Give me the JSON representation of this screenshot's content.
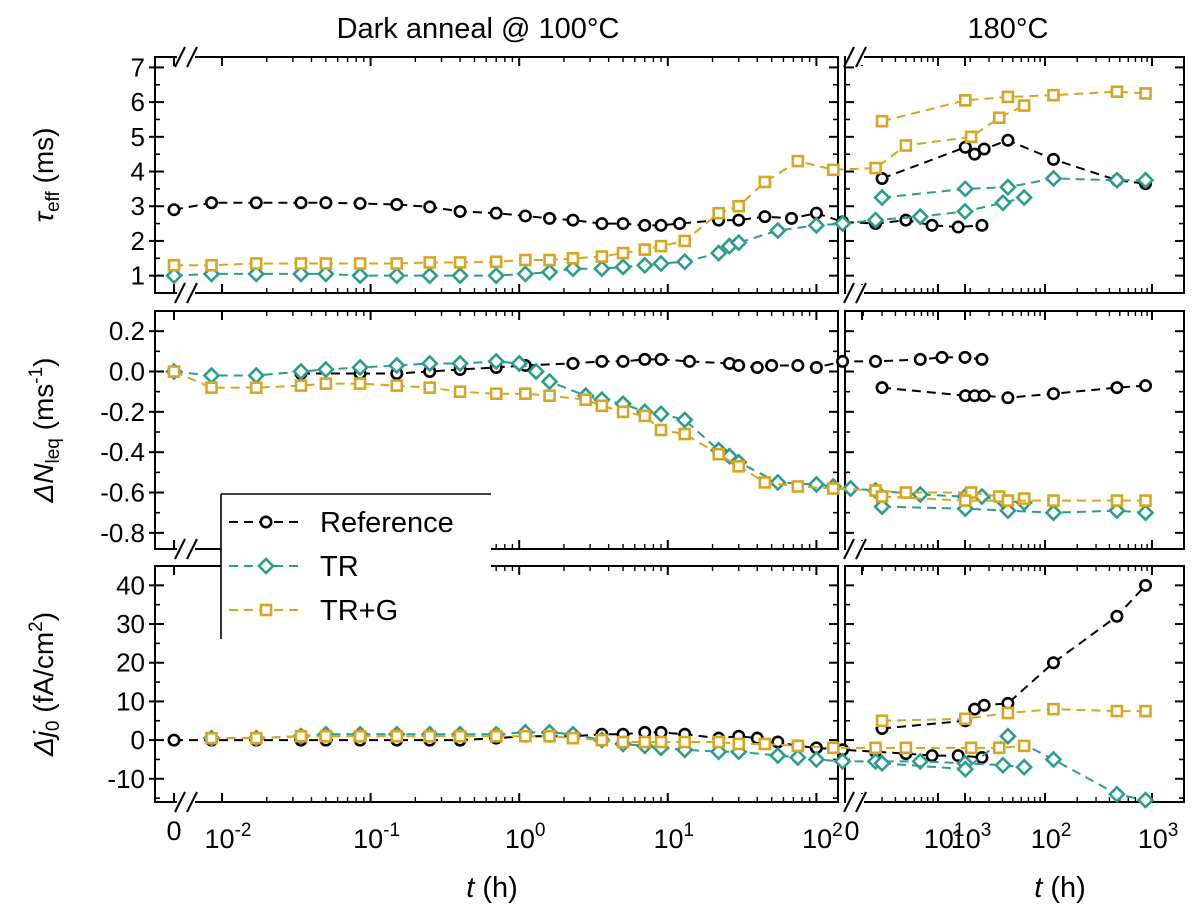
{
  "figure": {
    "left_title": "Dark anneal @ 100°C",
    "right_title": "180°C",
    "xlabel_var": "t",
    "xlabel_unit": " (h)",
    "legend": [
      {
        "label": "Reference",
        "series": "Reference"
      },
      {
        "label": "TR",
        "series": "TR"
      },
      {
        "label": "TR+G",
        "series": "TR+G"
      }
    ]
  },
  "colors": {
    "Reference": "#000000",
    "TR": "#2a9d8f",
    "TR+G": "#d9a521",
    "axis": "#000000",
    "background": "#ffffff"
  },
  "x_axis_left": {
    "scale": "log with zero break",
    "zero_label": "0",
    "ticks": [
      {
        "value": 0.01,
        "base": "10",
        "exp": "-2"
      },
      {
        "value": 0.1,
        "base": "10",
        "exp": "-1"
      },
      {
        "value": 1,
        "base": "10",
        "exp": "0"
      },
      {
        "value": 10,
        "base": "10",
        "exp": "1"
      },
      {
        "value": 100,
        "base": "10",
        "exp": "2"
      },
      {
        "value": 1000,
        "base": "10",
        "exp": "3"
      }
    ]
  },
  "x_axis_right": {
    "scale": "log with zero break",
    "zero_label": "0",
    "ticks": [
      {
        "value": 10,
        "base": "10",
        "exp": "1"
      },
      {
        "value": 100,
        "base": "10",
        "exp": "2"
      },
      {
        "value": 1000,
        "base": "10",
        "exp": "3"
      }
    ]
  },
  "chart_data": [
    {
      "type": "line",
      "panel": "tau_eff",
      "ylabel": {
        "sym": "τ",
        "sub": "eff",
        "unit": " (ms)"
      },
      "ylim": [
        0.5,
        7.3
      ],
      "yticks": [
        1,
        2,
        3,
        4,
        5,
        6,
        7
      ],
      "ytick_labels": [
        "1",
        "2",
        "3",
        "4",
        "5",
        "6",
        "7"
      ],
      "xlabel": "t (h)",
      "series": [
        {
          "name": "Reference",
          "left": {
            "x": [
              0,
              0.0085,
              0.017,
              0.034,
              0.05,
              0.085,
              0.15,
              0.25,
              0.4,
              0.7,
              1.1,
              1.6,
              2.3,
              3.6,
              5,
              7,
              9,
              12,
              22,
              30,
              45,
              68,
              100,
              150,
              250,
              400,
              600,
              900,
              1300
            ],
            "y": [
              2.9,
              3.1,
              3.1,
              3.1,
              3.1,
              3.08,
              3.05,
              2.98,
              2.85,
              2.8,
              2.72,
              2.65,
              2.6,
              2.5,
              2.5,
              2.45,
              2.45,
              2.5,
              2.6,
              2.6,
              2.7,
              2.65,
              2.8,
              2.55,
              2.5,
              2.6,
              2.45,
              2.4,
              2.45
            ]
          },
          "right": {
            "x": [
              3,
              18,
              22,
              27,
              45,
              120,
              470,
              870
            ],
            "y": [
              3.8,
              4.7,
              4.5,
              4.65,
              4.9,
              4.35,
              3.75,
              3.65
            ]
          }
        },
        {
          "name": "TR",
          "left": {
            "x": [
              0,
              0.0085,
              0.017,
              0.034,
              0.05,
              0.085,
              0.15,
              0.25,
              0.4,
              0.7,
              1.1,
              1.6,
              2.3,
              3.6,
              5,
              7,
              9,
              13,
              22,
              26,
              30,
              55,
              100,
              150,
              250,
              500,
              1000,
              1800,
              2500
            ],
            "y": [
              1.0,
              1.05,
              1.05,
              1.05,
              1.05,
              1.0,
              1.0,
              1.0,
              1.0,
              1.0,
              1.05,
              1.1,
              1.2,
              1.2,
              1.25,
              1.3,
              1.35,
              1.4,
              1.65,
              1.85,
              1.95,
              2.3,
              2.45,
              2.5,
              2.6,
              2.7,
              2.85,
              3.1,
              3.25
            ]
          },
          "right": {
            "x": [
              3,
              18,
              45,
              120,
              470,
              870
            ],
            "y": [
              3.25,
              3.5,
              3.55,
              3.8,
              3.75,
              3.75
            ]
          }
        },
        {
          "name": "TR+G",
          "left": {
            "x": [
              0,
              0.0085,
              0.017,
              0.034,
              0.05,
              0.085,
              0.15,
              0.25,
              0.4,
              0.7,
              1.1,
              1.6,
              2.3,
              3.6,
              5,
              7,
              9,
              13,
              22,
              30,
              45,
              75,
              130,
              250,
              400,
              1100,
              1700,
              2500
            ],
            "y": [
              1.3,
              1.3,
              1.35,
              1.35,
              1.35,
              1.35,
              1.35,
              1.38,
              1.38,
              1.4,
              1.45,
              1.45,
              1.5,
              1.55,
              1.65,
              1.75,
              1.85,
              2.0,
              2.8,
              3.0,
              3.7,
              4.3,
              4.05,
              4.1,
              4.75,
              5.0,
              5.55,
              5.9
            ]
          },
          "right": {
            "x": [
              3,
              18,
              45,
              120,
              470,
              870
            ],
            "y": [
              5.45,
              6.05,
              6.15,
              6.2,
              6.3,
              6.25
            ]
          }
        }
      ]
    },
    {
      "type": "line",
      "panel": "delta_N_leq",
      "ylabel": {
        "sym": "ΔN",
        "sub": "leq",
        "unit": " (ms",
        "sup": "-1",
        "close": ")"
      },
      "ylim": [
        -0.88,
        0.3
      ],
      "yticks": [
        0.2,
        0.0,
        -0.2,
        -0.4,
        -0.6,
        -0.8
      ],
      "ytick_labels": [
        "0.2",
        "0.0",
        "-0.2",
        "-0.4",
        "-0.6",
        "-0.8"
      ],
      "xlabel": "t (h)",
      "series": [
        {
          "name": "Reference",
          "left": {
            "x": [
              0.034,
              0.085,
              0.15,
              0.25,
              0.4,
              0.7,
              1.1,
              2.3,
              3.6,
              5,
              7,
              9,
              14,
              26,
              30,
              40,
              50,
              75,
              100,
              150,
              250,
              500,
              700,
              1000,
              1300
            ],
            "y": [
              -0.01,
              -0.01,
              -0.01,
              0.0,
              0.01,
              0.02,
              0.03,
              0.04,
              0.05,
              0.05,
              0.06,
              0.06,
              0.05,
              0.04,
              0.03,
              0.02,
              0.03,
              0.03,
              0.02,
              0.05,
              0.05,
              0.06,
              0.07,
              0.07,
              0.06
            ]
          },
          "right": {
            "x": [
              3,
              18,
              22,
              27,
              45,
              120,
              470,
              870
            ],
            "y": [
              -0.08,
              -0.12,
              -0.12,
              -0.12,
              -0.13,
              -0.11,
              -0.08,
              -0.07
            ]
          }
        },
        {
          "name": "TR",
          "left": {
            "x": [
              0,
              0.0085,
              0.017,
              0.034,
              0.05,
              0.085,
              0.15,
              0.25,
              0.4,
              0.7,
              1.0,
              1.3,
              1.6,
              2.8,
              3.6,
              5,
              7,
              9,
              13,
              22,
              26,
              30,
              55,
              100,
              130,
              170,
              250,
              500,
              1000,
              1300,
              1800,
              2500
            ],
            "y": [
              0.0,
              -0.02,
              -0.02,
              0.0,
              0.01,
              0.02,
              0.03,
              0.04,
              0.04,
              0.05,
              0.04,
              0.0,
              -0.05,
              -0.12,
              -0.14,
              -0.16,
              -0.2,
              -0.21,
              -0.24,
              -0.39,
              -0.42,
              -0.45,
              -0.55,
              -0.56,
              -0.57,
              -0.58,
              -0.59,
              -0.61,
              -0.62,
              -0.62,
              -0.64,
              -0.65
            ]
          },
          "right": {
            "x": [
              3,
              18,
              45,
              120,
              470,
              870
            ],
            "y": [
              -0.67,
              -0.68,
              -0.69,
              -0.7,
              -0.69,
              -0.7
            ]
          }
        },
        {
          "name": "TR+G",
          "left": {
            "x": [
              0,
              0.0085,
              0.017,
              0.034,
              0.05,
              0.085,
              0.15,
              0.25,
              0.4,
              0.7,
              1.1,
              1.6,
              2.8,
              3.6,
              5,
              7,
              9,
              13,
              22,
              30,
              45,
              75,
              130,
              250,
              400,
              1100,
              1700,
              2500
            ],
            "y": [
              0.0,
              -0.08,
              -0.08,
              -0.07,
              -0.06,
              -0.06,
              -0.07,
              -0.08,
              -0.1,
              -0.11,
              -0.11,
              -0.12,
              -0.14,
              -0.17,
              -0.2,
              -0.22,
              -0.29,
              -0.31,
              -0.41,
              -0.47,
              -0.55,
              -0.57,
              -0.58,
              -0.59,
              -0.6,
              -0.6,
              -0.62,
              -0.63
            ]
          },
          "right": {
            "x": [
              3,
              18,
              45,
              120,
              470,
              870
            ],
            "y": [
              -0.62,
              -0.64,
              -0.64,
              -0.64,
              -0.64,
              -0.64
            ]
          }
        }
      ]
    },
    {
      "type": "line",
      "panel": "delta_j0",
      "ylabel": {
        "sym": "Δj",
        "sub": "0",
        "unit": " (fA/cm",
        "sup": "2",
        "close": ")"
      },
      "ylim": [
        -16,
        45
      ],
      "yticks": [
        40,
        30,
        20,
        10,
        0,
        -10
      ],
      "ytick_labels": [
        "40",
        "30",
        "20",
        "10",
        "0",
        "-10"
      ],
      "xlabel": "t (h)",
      "series": [
        {
          "name": "Reference",
          "left": {
            "x": [
              0,
              0.0085,
              0.017,
              0.034,
              0.05,
              0.085,
              0.15,
              0.25,
              0.4,
              0.7,
              1.1,
              1.6,
              2.3,
              3.6,
              5,
              7,
              9,
              13,
              22,
              30,
              40,
              55,
              75,
              100,
              150,
              250,
              400,
              600,
              900,
              1300
            ],
            "y": [
              0,
              0,
              0,
              0,
              0,
              0,
              0,
              0,
              0,
              0.5,
              1.0,
              1.0,
              1.0,
              1.5,
              1.5,
              2.0,
              2.0,
              1.5,
              0.5,
              1.0,
              0.5,
              -0.5,
              -1.5,
              -2.0,
              -2.5,
              -3.0,
              -3.5,
              -4.0,
              -4.0,
              -4.5
            ]
          },
          "right": {
            "x": [
              3,
              18,
              22,
              27,
              45,
              120,
              470,
              870
            ],
            "y": [
              3.0,
              5.0,
              8.0,
              9.0,
              9.5,
              20.0,
              32.0,
              40.0
            ]
          }
        },
        {
          "name": "TR",
          "left": {
            "x": [
              0.0085,
              0.017,
              0.034,
              0.05,
              0.085,
              0.15,
              0.25,
              0.4,
              0.7,
              1.1,
              1.6,
              2.3,
              3.6,
              5,
              7,
              9,
              13,
              22,
              30,
              55,
              75,
              100,
              150,
              250,
              500,
              1000,
              1800,
              2500
            ],
            "y": [
              0.5,
              0.5,
              1.0,
              1.5,
              1.5,
              1.5,
              1.5,
              1.5,
              1.5,
              2.0,
              2.0,
              1.5,
              0.0,
              -1.0,
              -1.5,
              -2.0,
              -2.5,
              -3.0,
              -3.0,
              -4.0,
              -4.5,
              -5.0,
              -5.5,
              -5.5,
              -5.5,
              -6.0,
              -6.5,
              -7.0
            ]
          },
          "right": {
            "x": [
              3,
              18,
              45,
              120,
              470,
              870
            ],
            "y": [
              -6.0,
              -7.5,
              1.0,
              -5.0,
              -14.0,
              -15.5
            ]
          }
        },
        {
          "name": "TR+G",
          "left": {
            "x": [
              0.0085,
              0.017,
              0.034,
              0.05,
              0.085,
              0.15,
              0.25,
              0.4,
              0.7,
              1.1,
              1.6,
              2.3,
              3.6,
              5,
              7,
              9,
              13,
              22,
              30,
              45,
              75,
              130,
              250,
              400,
              1100,
              1700,
              2500
            ],
            "y": [
              0.5,
              0.5,
              1.0,
              1.0,
              1.0,
              1.0,
              1.0,
              1.0,
              1.0,
              1.0,
              1.0,
              0.5,
              0.0,
              -0.5,
              -0.5,
              -0.5,
              -0.5,
              -0.5,
              -1.0,
              -1.0,
              -1.5,
              -2.0,
              -2.0,
              -2.0,
              -2.0,
              -2.0,
              -1.5
            ]
          },
          "right": {
            "x": [
              3,
              18,
              45,
              120,
              470,
              870
            ],
            "y": [
              5.0,
              5.5,
              7.0,
              8.0,
              7.5,
              7.5
            ]
          }
        }
      ]
    }
  ]
}
